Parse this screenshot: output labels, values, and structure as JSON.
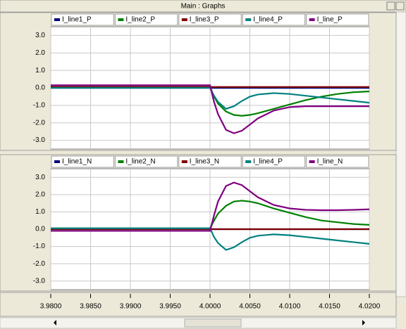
{
  "window_title": "Main : Graphs",
  "chart_data": [
    {
      "type": "line",
      "x": [
        3.98,
        4.0,
        4.0005,
        4.001,
        4.002,
        4.003,
        4.004,
        4.005,
        4.006,
        4.008,
        4.01,
        4.012,
        4.014,
        4.016,
        4.018,
        4.02
      ],
      "ylim": [
        -3.5,
        3.5
      ],
      "yticks": [
        {
          "value": 3,
          "label": "3.0"
        },
        {
          "value": 2,
          "label": "2.0"
        },
        {
          "value": 1,
          "label": "1.0"
        },
        {
          "value": 0,
          "label": "0.0"
        },
        {
          "value": -1,
          "label": "-1.0"
        },
        {
          "value": -2,
          "label": "-2.0"
        },
        {
          "value": -3,
          "label": "-3.0"
        }
      ],
      "grid": true,
      "series": [
        {
          "name": "I_line1_P",
          "color": "#000080",
          "values": [
            0,
            0,
            0,
            0,
            0,
            0,
            0,
            0,
            0,
            0,
            0,
            0,
            0,
            0,
            0,
            0
          ]
        },
        {
          "name": "I_line2_P",
          "color": "#008000",
          "values": [
            0.05,
            0.05,
            -0.5,
            -0.9,
            -1.35,
            -1.55,
            -1.6,
            -1.55,
            -1.45,
            -1.2,
            -0.95,
            -0.7,
            -0.5,
            -0.35,
            -0.25,
            -0.2
          ]
        },
        {
          "name": "I_line3_P",
          "color": "#800000",
          "values": [
            0.05,
            0.05,
            0.05,
            0.05,
            0.05,
            0.05,
            0.05,
            0.05,
            0.05,
            0.05,
            0.05,
            0.05,
            0.05,
            0.05,
            0.05,
            0.05
          ]
        },
        {
          "name": "I_line4_P",
          "color": "#008080",
          "values": [
            0,
            0,
            -0.45,
            -0.8,
            -1.2,
            -1.05,
            -0.75,
            -0.5,
            -0.38,
            -0.3,
            -0.35,
            -0.45,
            -0.55,
            -0.65,
            -0.75,
            -0.85
          ]
        },
        {
          "name": "I_line_P",
          "color": "#800080",
          "values": [
            0.15,
            0.15,
            -0.8,
            -1.5,
            -2.4,
            -2.6,
            -2.45,
            -2.1,
            -1.75,
            -1.3,
            -1.1,
            -1.05,
            -1.05,
            -1.05,
            -1.05,
            -1.05
          ]
        }
      ]
    },
    {
      "type": "line",
      "x": [
        3.98,
        4.0,
        4.0005,
        4.001,
        4.002,
        4.003,
        4.004,
        4.005,
        4.006,
        4.008,
        4.01,
        4.012,
        4.014,
        4.016,
        4.018,
        4.02
      ],
      "xlim": [
        3.98,
        4.02
      ],
      "xticks": [
        {
          "value": 3.98,
          "label": "3.9800"
        },
        {
          "value": 3.985,
          "label": "3.9850"
        },
        {
          "value": 3.99,
          "label": "3.9900"
        },
        {
          "value": 3.995,
          "label": "3.9950"
        },
        {
          "value": 4.0,
          "label": "4.0000"
        },
        {
          "value": 4.005,
          "label": "4.0050"
        },
        {
          "value": 4.01,
          "label": "4.0100"
        },
        {
          "value": 4.015,
          "label": "4.0150"
        },
        {
          "value": 4.02,
          "label": "4.0200"
        }
      ],
      "ylim": [
        -3.5,
        3.5
      ],
      "yticks": [
        {
          "value": 3,
          "label": "3.0"
        },
        {
          "value": 2,
          "label": "2.0"
        },
        {
          "value": 1,
          "label": "1.0"
        },
        {
          "value": 0,
          "label": "0.0"
        },
        {
          "value": -1,
          "label": "-1.0"
        },
        {
          "value": -2,
          "label": "-2.0"
        },
        {
          "value": -3,
          "label": "-3.0"
        }
      ],
      "grid": true,
      "series": [
        {
          "name": "I_line1_N",
          "color": "#000080",
          "values": [
            0,
            0,
            0,
            0,
            0,
            0,
            0,
            0,
            0,
            0,
            0,
            0,
            0,
            0,
            0,
            0
          ]
        },
        {
          "name": "I_line2_N",
          "color": "#008000",
          "values": [
            0.05,
            0.05,
            0.5,
            0.9,
            1.35,
            1.6,
            1.65,
            1.6,
            1.5,
            1.2,
            0.95,
            0.7,
            0.5,
            0.4,
            0.3,
            0.25
          ]
        },
        {
          "name": "I_line3_N",
          "color": "#800000",
          "values": [
            0,
            0,
            0,
            0,
            0,
            0,
            0,
            0,
            0,
            0,
            0,
            0,
            0,
            0,
            0,
            0
          ]
        },
        {
          "name": "I_line4_P",
          "color": "#008080",
          "values": [
            0.05,
            0.05,
            -0.45,
            -0.8,
            -1.2,
            -1.05,
            -0.75,
            -0.5,
            -0.38,
            -0.3,
            -0.35,
            -0.45,
            -0.55,
            -0.65,
            -0.75,
            -0.85
          ]
        },
        {
          "name": "I_line_N",
          "color": "#800080",
          "values": [
            -0.1,
            -0.1,
            0.8,
            1.6,
            2.5,
            2.7,
            2.55,
            2.2,
            1.85,
            1.4,
            1.2,
            1.12,
            1.1,
            1.1,
            1.12,
            1.15
          ]
        }
      ]
    }
  ]
}
